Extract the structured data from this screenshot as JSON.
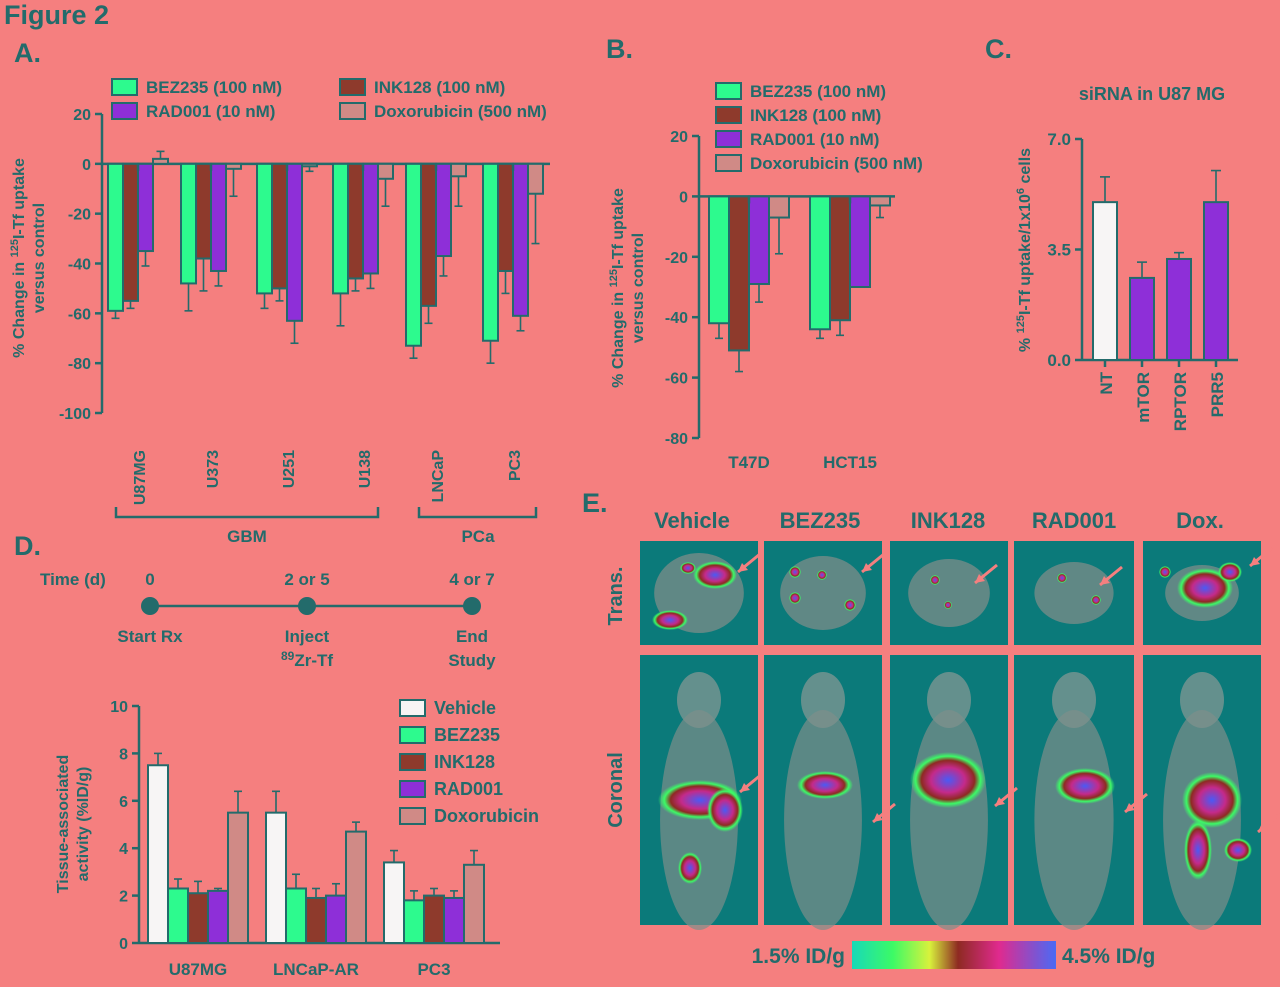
{
  "figure_title": "Figure 2",
  "colors": {
    "background": "#F57F7F",
    "ink": "#236B6B",
    "vehicle": "#F7F5F5",
    "bez235": "#2DFA8E",
    "ink128": "#8E3A2C",
    "rad001": "#8E2FD8",
    "doxorubicin": "#D08A86",
    "image_bg": "#0B7A7A"
  },
  "panel_a": {
    "label": "A.",
    "legend": [
      "BEZ235 (100 nM)",
      "INK128 (100 nM)",
      "RAD001 (10 nM)",
      "Doxorubicin (500 nM)"
    ],
    "ylabel_lines": [
      "% Change in 125I-Tf uptake",
      "versus control"
    ],
    "ylabel_sup": "125",
    "ylabel_pre": "% Change in ",
    "ylabel_post": "I-Tf uptake",
    "ylabel2": "versus control",
    "groups": [
      {
        "label": "GBM"
      },
      {
        "label": "PCa"
      }
    ]
  },
  "panel_b": {
    "label": "B.",
    "legend": [
      "BEZ235 (100 nM)",
      "INK128 (100 nM)",
      "RAD001 (10 nM)",
      "Doxorubicin (500 nM)"
    ],
    "ylabel_pre": "% Change in ",
    "ylabel_sup": "125",
    "ylabel_post": "I-Tf uptake",
    "ylabel2": "versus control"
  },
  "panel_c": {
    "label": "C.",
    "title": "siRNA in U87 MG",
    "ylabel_pre": "% ",
    "ylabel_sup": "125",
    "ylabel_mid": "I-Tf uptake/1x10",
    "ylabel_sup2": "6",
    "ylabel_post": " cells"
  },
  "panel_d": {
    "label": "D.",
    "timeline": {
      "axis_label": "Time (d)",
      "ticks": [
        "0",
        "2 or 5",
        "4 or 7"
      ],
      "events": [
        [
          "Start Rx"
        ],
        [
          "Inject",
          "89Zr-Tf"
        ],
        [
          "End",
          "Study"
        ]
      ],
      "inject_line1": "Inject",
      "inject_sup": "89",
      "inject_post": "Zr-Tf"
    },
    "legend": [
      "Vehicle",
      "BEZ235",
      "INK128",
      "RAD001",
      "Doxorubicin"
    ],
    "ylabel": [
      "Tissue-associated",
      "activity (%ID/g)"
    ]
  },
  "panel_e": {
    "label": "E.",
    "columns": [
      "Vehicle",
      "BEZ235",
      "INK128",
      "RAD001",
      "Dox."
    ],
    "rows": [
      "Trans.",
      "Coronal"
    ],
    "colorbar_min": "1.5% ID/g",
    "colorbar_max": "4.5% ID/g"
  },
  "chart_data": [
    {
      "id": "A",
      "type": "bar",
      "categories": [
        "U87MG",
        "U373",
        "U251",
        "U138",
        "LNCaP",
        "PC3"
      ],
      "series": [
        {
          "name": "BEZ235 (100 nM)",
          "color": "#2DFA8E",
          "values": [
            -59,
            -48,
            -52,
            -52,
            -73,
            -71
          ],
          "errors": [
            3,
            11,
            6,
            13,
            5,
            9
          ]
        },
        {
          "name": "INK128 (100 nM)",
          "color": "#8E3A2C",
          "values": [
            -55,
            -38,
            -50,
            -46,
            -57,
            -43
          ],
          "errors": [
            3,
            13,
            5,
            5,
            7,
            9
          ]
        },
        {
          "name": "RAD001 (10 nM)",
          "color": "#8E2FD8",
          "values": [
            -35,
            -43,
            -63,
            -44,
            -37,
            -61
          ],
          "errors": [
            6,
            6,
            9,
            6,
            8,
            6
          ]
        },
        {
          "name": "Doxorubicin (500 nM)",
          "color": "#D08A86",
          "values": [
            2,
            -2,
            -1,
            -6,
            -5,
            -12
          ],
          "errors": [
            3,
            11,
            2,
            11,
            12,
            20
          ]
        }
      ],
      "ylim": [
        -100,
        20
      ],
      "yticks": [
        20,
        0,
        -20,
        -40,
        -60,
        -80,
        -100
      ]
    },
    {
      "id": "B",
      "type": "bar",
      "categories": [
        "T47D",
        "HCT15"
      ],
      "series": [
        {
          "name": "BEZ235 (100 nM)",
          "color": "#2DFA8E",
          "values": [
            -42,
            -44
          ],
          "errors": [
            5,
            3
          ]
        },
        {
          "name": "INK128 (100 nM)",
          "color": "#8E3A2C",
          "values": [
            -51,
            -41
          ],
          "errors": [
            7,
            5
          ]
        },
        {
          "name": "RAD001 (10 nM)",
          "color": "#8E2FD8",
          "values": [
            -29,
            -30
          ],
          "errors": [
            6,
            0
          ]
        },
        {
          "name": "Doxorubicin (500 nM)",
          "color": "#D08A86",
          "values": [
            -7,
            -3
          ],
          "errors": [
            12,
            4
          ]
        }
      ],
      "ylim": [
        -80,
        20
      ],
      "yticks": [
        20,
        0,
        -20,
        -40,
        -60,
        -80
      ]
    },
    {
      "id": "C",
      "type": "bar",
      "categories": [
        "NT",
        "mTOR",
        "RPTOR",
        "PRR5"
      ],
      "values": [
        5.0,
        2.6,
        3.2,
        5.0
      ],
      "errors": [
        0.8,
        0.5,
        0.2,
        1.0
      ],
      "colors": [
        "#F7F5F5",
        "#8E2FD8",
        "#8E2FD8",
        "#8E2FD8"
      ],
      "ylim": [
        0,
        7
      ],
      "yticks": [
        "7.0",
        "3.5",
        "0.0"
      ]
    },
    {
      "id": "D",
      "type": "bar",
      "categories": [
        "U87MG",
        "LNCaP-AR",
        "PC3"
      ],
      "series": [
        {
          "name": "Vehicle",
          "color": "#F7F5F5",
          "values": [
            7.5,
            5.5,
            3.4
          ],
          "errors": [
            0.5,
            0.9,
            0.5
          ]
        },
        {
          "name": "BEZ235",
          "color": "#2DFA8E",
          "values": [
            2.3,
            2.3,
            1.8
          ],
          "errors": [
            0.4,
            0.6,
            0.4
          ]
        },
        {
          "name": "INK128",
          "color": "#8E3A2C",
          "values": [
            2.1,
            1.9,
            2.0
          ],
          "errors": [
            0.5,
            0.4,
            0.3
          ]
        },
        {
          "name": "RAD001",
          "color": "#8E2FD8",
          "values": [
            2.2,
            2.0,
            1.9
          ],
          "errors": [
            0.1,
            0.5,
            0.3
          ]
        },
        {
          "name": "Doxorubicin",
          "color": "#D08A86",
          "values": [
            5.5,
            4.7,
            3.3
          ],
          "errors": [
            0.9,
            0.4,
            0.6
          ]
        }
      ],
      "ylim": [
        0,
        10
      ],
      "yticks": [
        0,
        2,
        4,
        6,
        8,
        10
      ]
    }
  ]
}
